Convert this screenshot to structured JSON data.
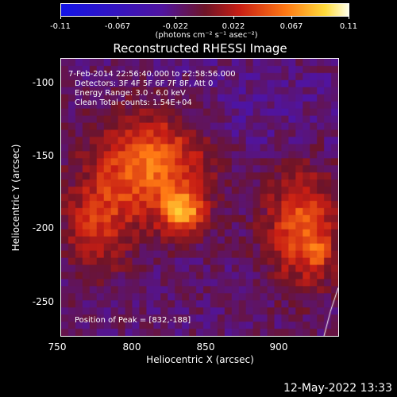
{
  "colorbar": {
    "ticks": [
      "-0.11",
      "-0.067",
      "-0.022",
      "0.022",
      "0.067",
      "0.11"
    ],
    "units": "(photons cm⁻² s⁻¹ asec⁻²)"
  },
  "title": "Reconstructed RHESSI Image",
  "axes": {
    "xlabel": "Heliocentric X (arcsec)",
    "ylabel": "Heliocentric Y (arcsec)",
    "xticks": [
      "750",
      "800",
      "850",
      "900"
    ],
    "yticks": [
      "-100",
      "-150",
      "-200",
      "-250"
    ]
  },
  "annotations": {
    "time": "7-Feb-2014 22:56:40.000 to 22:58:56.000",
    "detectors": "Detectors: 3F 4F 5F 6F 7F 8F, Att 0",
    "energy": "Energy Range: 3.0 - 6.0 keV",
    "clean": "Clean     Total counts: 1.54E+04",
    "peak": "Position of Peak = [832,-188]"
  },
  "footer_date": "12-May-2022 13:33",
  "colors": {
    "background": "#000000",
    "map_low": "#2b0b4d",
    "map_high": "#ffffb0"
  }
}
